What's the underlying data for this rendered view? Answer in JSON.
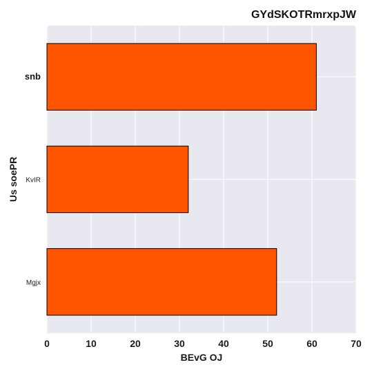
{
  "chart_data": {
    "type": "bar",
    "orientation": "horizontal",
    "title": "GYdSKOTRmrxpJW",
    "xlabel": "BEvG  OJ",
    "ylabel": "Us soePR",
    "categories": [
      "snb",
      "KvIR",
      "Mgjx"
    ],
    "values": [
      61,
      32,
      52
    ],
    "bold_categories": [
      "snb"
    ],
    "xlim": [
      0,
      70
    ],
    "xticks": [
      0,
      10,
      20,
      30,
      40,
      50,
      60,
      70
    ],
    "bar_color": "#ff5500",
    "bar_edge_color": "#000000",
    "grid": true,
    "legend": "none"
  },
  "colors": {
    "plot_background": "#e8e8f0",
    "grid": "#ffffff"
  }
}
